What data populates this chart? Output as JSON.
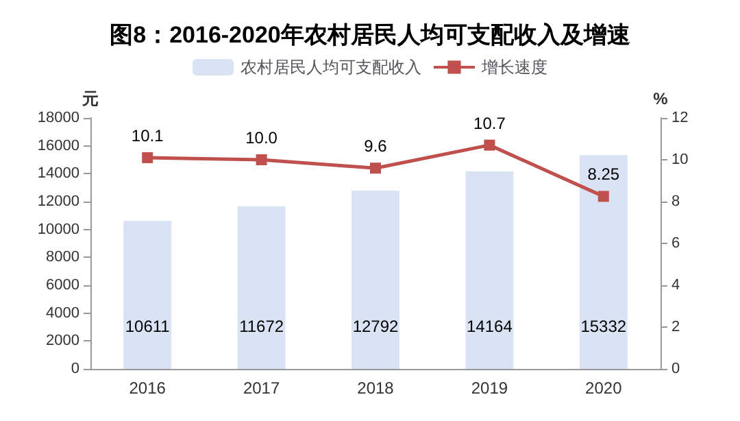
{
  "chart_data": {
    "type": "bar",
    "title": "图8：2016-2020年农村居民人均可支配收入及增速",
    "ylabel": "元",
    "y2label": "%",
    "categories": [
      "2016",
      "2017",
      "2018",
      "2019",
      "2020"
    ],
    "series": [
      {
        "name": "农村居民人均可支配收入",
        "color": "#dae3f3",
        "values": [
          10611,
          11672,
          12792,
          14164,
          15332
        ],
        "value_labels": [
          "10611",
          "11672",
          "12792",
          "14164",
          "15332"
        ]
      },
      {
        "name": "增长速度",
        "type": "line",
        "axis": "y2",
        "color": "#c0504d",
        "marker": "square",
        "values": [
          10.1,
          10.0,
          9.6,
          10.7,
          8.25
        ],
        "value_labels": [
          "10.1",
          "10.0",
          "9.6",
          "10.7",
          "8.25"
        ]
      }
    ],
    "ylim": [
      0,
      18000
    ],
    "yticks": [
      0,
      2000,
      4000,
      6000,
      8000,
      10000,
      12000,
      14000,
      16000,
      18000
    ],
    "y2lim": [
      0,
      12
    ],
    "y2ticks": [
      0,
      2,
      4,
      6,
      8,
      10,
      12
    ],
    "grid": false,
    "legend": "top"
  }
}
